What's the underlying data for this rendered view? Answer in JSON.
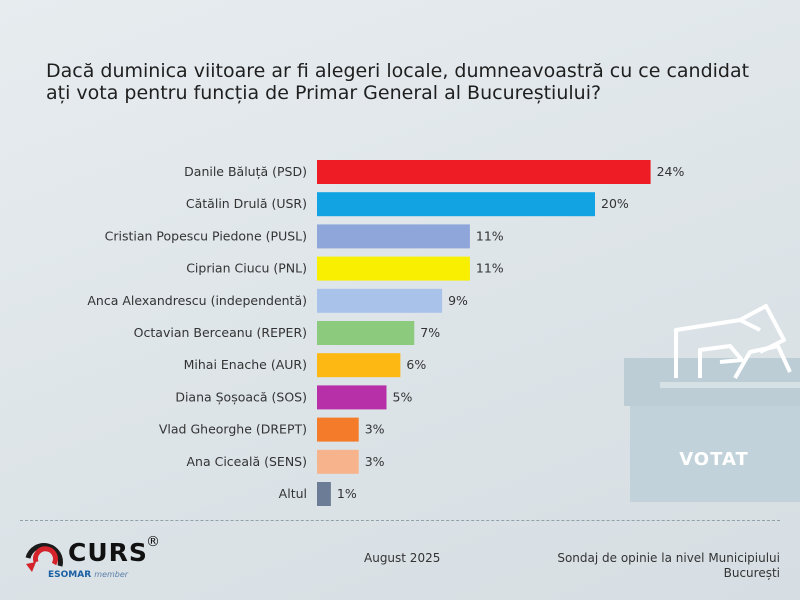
{
  "chart_data": {
    "type": "bar",
    "orientation": "horizontal",
    "title": "Dacă duminica viitoare ar fi alegeri locale, dumneavoastră cu ce candidat ați vota pentru funcția de Primar General al Bucureștiului?",
    "categories": [
      "Danile Băluță (PSD)",
      "Cătălin Drulă (USR)",
      "Cristian Popescu Piedone (PUSL)",
      "Ciprian Ciucu (PNL)",
      "Anca Alexandrescu (independentă)",
      "Octavian Berceanu (REPER)",
      "Mihai Enache (AUR)",
      "Diana Șoșoacă (SOS)",
      "Vlad Gheorghe (DREPT)",
      "Ana Ciceală (SENS)",
      "Altul"
    ],
    "values": [
      24,
      20,
      11,
      11,
      9,
      7,
      6,
      5,
      3,
      3,
      1
    ],
    "value_labels": [
      "24%",
      "20%",
      "11%",
      "11%",
      "9%",
      "7%",
      "6%",
      "5%",
      "3%",
      "3%",
      "1%"
    ],
    "colors": [
      "#ee1c25",
      "#12a3e3",
      "#8fa6db",
      "#f8f000",
      "#a9c2ea",
      "#8ccb7d",
      "#fdb813",
      "#b730a8",
      "#f37b2a",
      "#f6b38c",
      "#6d7c96"
    ],
    "unit": "%",
    "grid": false
  },
  "ballot": {
    "label": "VOTAT"
  },
  "logo": {
    "name": "CURS",
    "registered": "®",
    "sub": "ESOMAR",
    "sub2": "member"
  },
  "footer": {
    "date": "August 2025",
    "source": "Sondaj de opinie la nivel Municipiului București"
  }
}
